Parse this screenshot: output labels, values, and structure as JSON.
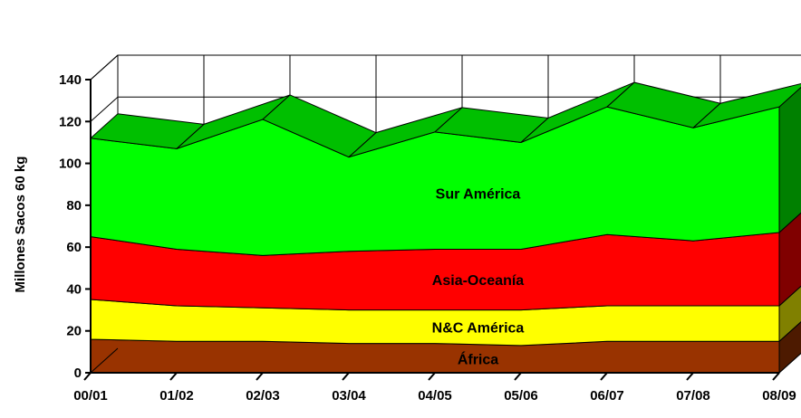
{
  "chart_data": {
    "type": "area",
    "stacked": true,
    "three_d": true,
    "ylabel": "Millones Sacos 60 kg",
    "xlabel": "",
    "title": "",
    "ylim": [
      0,
      140
    ],
    "yticks": [
      "0",
      "20",
      "40",
      "60",
      "80",
      "100",
      "120",
      "140"
    ],
    "grid": true,
    "categories": [
      "00/01",
      "01/02",
      "02/03",
      "03/04",
      "04/05",
      "05/06",
      "06/07",
      "07/08",
      "08/09"
    ],
    "series": [
      {
        "name": "África",
        "color": "#993300",
        "values": [
          16,
          15,
          15,
          14,
          14,
          13,
          15,
          15,
          15
        ]
      },
      {
        "name": "N&C América",
        "color": "#ffff00",
        "values": [
          19,
          17,
          16,
          16,
          16,
          17,
          17,
          17,
          17
        ]
      },
      {
        "name": "Asia-Oceanía",
        "color": "#ff0000",
        "values": [
          30,
          27,
          25,
          28,
          29,
          29,
          34,
          31,
          35
        ]
      },
      {
        "name": "Sur América",
        "color": "#00ff00",
        "values": [
          47,
          48,
          65,
          45,
          56,
          51,
          61,
          54,
          60
        ]
      }
    ]
  }
}
